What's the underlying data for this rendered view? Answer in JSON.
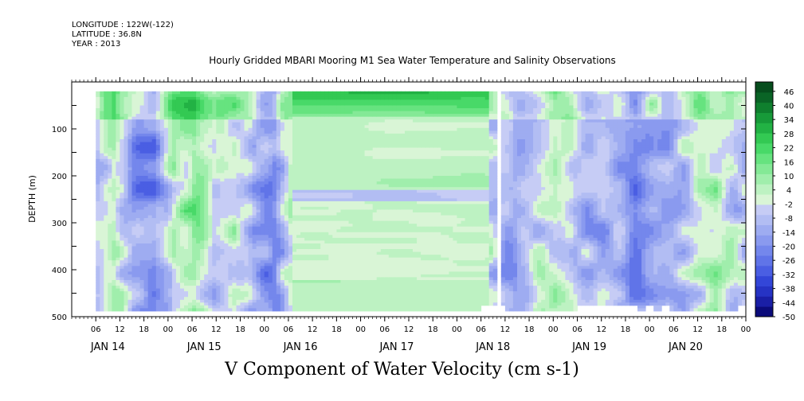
{
  "header": {
    "longitude": "LONGITUDE : 122W(-122)",
    "latitude": "LATITUDE : 36.8N",
    "year": "YEAR : 2013"
  },
  "chart_data": {
    "type": "heatmap",
    "title": "Hourly Gridded MBARI Mooring M1 Sea Water Temperature and Salinity Observations",
    "xlabel": "V Component of Water Velocity (cm s-1)",
    "ylabel": "DEPTH (m)",
    "ylim": [
      500,
      0
    ],
    "yticks": [
      100,
      200,
      300,
      400,
      500
    ],
    "xlim_hours": [
      0,
      168
    ],
    "hour_tick_labels": [
      "06",
      "12",
      "18",
      "00",
      "06",
      "12",
      "18",
      "00",
      "06",
      "12",
      "18",
      "00",
      "06",
      "12",
      "18",
      "00",
      "06",
      "12",
      "18",
      "00",
      "06",
      "12",
      "18",
      "00",
      "06",
      "12",
      "18",
      "00"
    ],
    "day_labels": [
      "JAN 14",
      "JAN 15",
      "JAN 16",
      "JAN 17",
      "JAN 18",
      "JAN 19",
      "JAN 20"
    ],
    "colorbar_labels": [
      "46",
      "40",
      "34",
      "28",
      "22",
      "16",
      "10",
      "4",
      "-2",
      "-8",
      "-14",
      "-20",
      "-26",
      "-32",
      "-38",
      "-44",
      "-50"
    ],
    "colorbar_range": [
      -50,
      50
    ],
    "colors": {
      "negative_strong": "#0a0a8c",
      "negative": "#3a55d8",
      "negative_weak": "#a8b4f0",
      "near_zero": "#cfe8c8",
      "positive_weak": "#90eca0",
      "positive": "#22cc44",
      "positive_strong": "#0a5a22"
    }
  }
}
